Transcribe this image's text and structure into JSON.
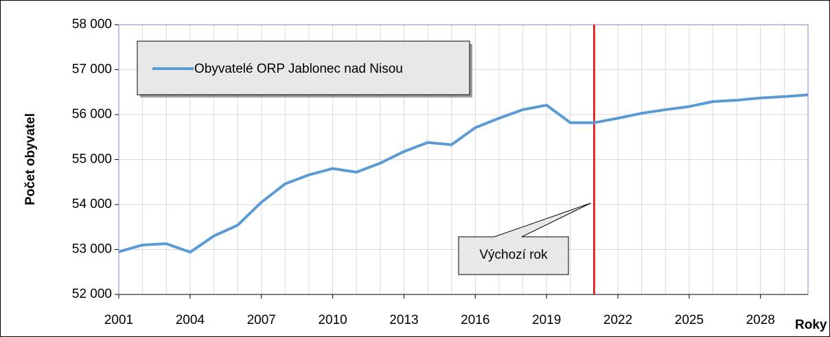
{
  "chart_data": {
    "type": "line",
    "x": [
      2001,
      2002,
      2003,
      2004,
      2005,
      2006,
      2007,
      2008,
      2009,
      2010,
      2011,
      2012,
      2013,
      2014,
      2015,
      2016,
      2017,
      2018,
      2019,
      2020,
      2021,
      2022,
      2023,
      2024,
      2025,
      2026,
      2027,
      2028,
      2029,
      2030
    ],
    "series": [
      {
        "name": "Obyvatelé ORP Jablonec nad Nisou",
        "color": "#5b9bd5",
        "values": [
          52950,
          53100,
          53130,
          52940,
          53300,
          53540,
          54050,
          54460,
          54660,
          54800,
          54720,
          54920,
          55180,
          55380,
          55330,
          55710,
          55920,
          56110,
          56210,
          55820,
          55820,
          55920,
          56030,
          56110,
          56180,
          56290,
          56320,
          56370,
          56400,
          56440
        ]
      }
    ],
    "xlim": [
      2001,
      2030
    ],
    "xticks": [
      2001,
      2004,
      2007,
      2010,
      2013,
      2016,
      2019,
      2022,
      2025,
      2028
    ],
    "ylim": [
      52000,
      58000
    ],
    "yticks": [
      {
        "value": 52000,
        "label": "52 000"
      },
      {
        "value": 53000,
        "label": "53 000"
      },
      {
        "value": 54000,
        "label": "54 000"
      },
      {
        "value": 55000,
        "label": "55 000"
      },
      {
        "value": 56000,
        "label": "56 000"
      },
      {
        "value": 57000,
        "label": "57 000"
      },
      {
        "value": 58000,
        "label": "58 000"
      }
    ],
    "y_label": "Počet obyvatel",
    "x_label": "Roky",
    "grid": true,
    "legend": "top-left",
    "annotations": [
      {
        "text": "Výchozí rok",
        "x": 2021,
        "color": "#e00000"
      }
    ]
  }
}
